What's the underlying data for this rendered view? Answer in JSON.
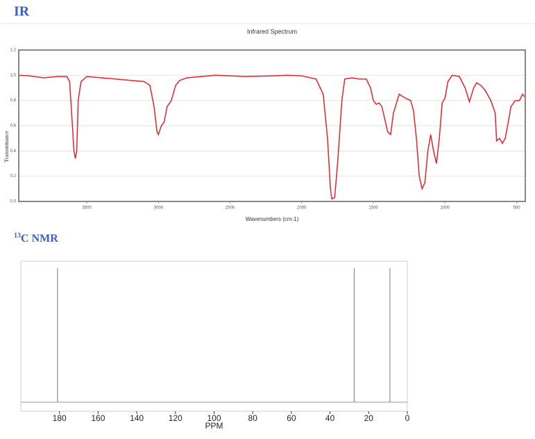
{
  "ir_heading": "IR",
  "nmr_heading": {
    "superscript": "13",
    "text": "C NMR"
  },
  "chart_data": [
    {
      "type": "line",
      "title": "Infrared Spectrum",
      "x_label": "Wavenumbers (cm-1)",
      "y_label": "Transmittance",
      "color": "#e8202a",
      "grid": true,
      "xlim": [
        3975,
        440
      ],
      "ylim": [
        0,
        1.2
      ],
      "xticks": [
        3500,
        3000,
        2500,
        2000,
        1500,
        1000,
        500
      ],
      "yticks": [
        {
          "value": 0,
          "label": "0.0"
        },
        0.2,
        0.4,
        0.6,
        0.8,
        {
          "value": 1,
          "label": "1.0"
        },
        1.2
      ],
      "x": [
        3975,
        3900,
        3800,
        3700,
        3640,
        3620,
        3600,
        3590,
        3580,
        3570,
        3560,
        3540,
        3500,
        3400,
        3300,
        3200,
        3100,
        3060,
        3030,
        3010,
        3000,
        2980,
        2960,
        2940,
        2910,
        2880,
        2850,
        2800,
        2700,
        2600,
        2400,
        2200,
        2100,
        2000,
        1900,
        1850,
        1820,
        1800,
        1790,
        1770,
        1750,
        1720,
        1700,
        1650,
        1600,
        1550,
        1520,
        1500,
        1480,
        1460,
        1440,
        1420,
        1400,
        1380,
        1360,
        1320,
        1280,
        1240,
        1220,
        1200,
        1180,
        1160,
        1140,
        1120,
        1100,
        1080,
        1060,
        1040,
        1020,
        1000,
        980,
        950,
        900,
        860,
        830,
        800,
        780,
        750,
        720,
        680,
        650,
        640,
        620,
        600,
        580,
        560,
        540,
        510,
        480,
        460,
        445
      ],
      "values": [
        1.0,
        0.995,
        0.98,
        0.99,
        0.99,
        0.95,
        0.6,
        0.4,
        0.34,
        0.4,
        0.8,
        0.95,
        0.99,
        0.98,
        0.97,
        0.96,
        0.95,
        0.92,
        0.75,
        0.55,
        0.53,
        0.6,
        0.63,
        0.75,
        0.8,
        0.92,
        0.96,
        0.98,
        0.99,
        1.0,
        0.99,
        0.995,
        1.0,
        0.995,
        0.97,
        0.85,
        0.5,
        0.1,
        0.02,
        0.03,
        0.3,
        0.8,
        0.97,
        0.98,
        0.97,
        0.97,
        0.9,
        0.8,
        0.77,
        0.78,
        0.75,
        0.65,
        0.55,
        0.53,
        0.7,
        0.85,
        0.82,
        0.8,
        0.72,
        0.5,
        0.2,
        0.1,
        0.15,
        0.4,
        0.53,
        0.4,
        0.3,
        0.5,
        0.78,
        0.82,
        0.95,
        1.0,
        0.99,
        0.9,
        0.79,
        0.9,
        0.94,
        0.92,
        0.88,
        0.8,
        0.7,
        0.48,
        0.5,
        0.46,
        0.5,
        0.62,
        0.75,
        0.8,
        0.8,
        0.85,
        0.83
      ]
    },
    {
      "type": "stick",
      "x_label": "PPM",
      "color": "#777777",
      "xlim": [
        200,
        0
      ],
      "xticks": [
        180,
        160,
        140,
        120,
        100,
        80,
        60,
        40,
        20,
        0
      ],
      "x": [
        181,
        27.5,
        9
      ]
    }
  ]
}
